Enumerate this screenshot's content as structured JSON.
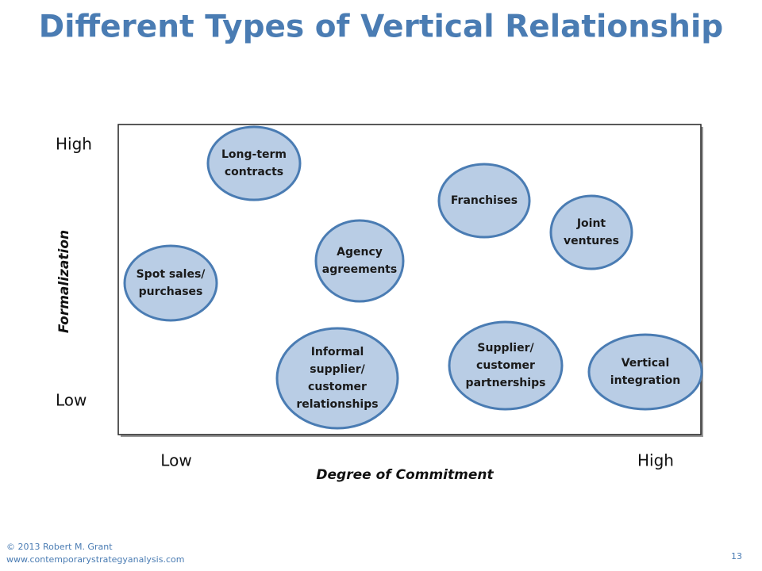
{
  "title": "Different Types of Vertical Relationship",
  "y_axis": {
    "label": "Formalization",
    "high": "High",
    "low": "Low"
  },
  "x_axis": {
    "label": "Degree of Commitment",
    "low": "Low",
    "high": "High"
  },
  "nodes": [
    {
      "lines": [
        "Long-term",
        "contracts"
      ]
    },
    {
      "lines": [
        "Franchises"
      ]
    },
    {
      "lines": [
        "Joint",
        "ventures"
      ]
    },
    {
      "lines": [
        "Agency",
        "agreements"
      ]
    },
    {
      "lines": [
        "Spot sales/",
        "purchases"
      ]
    },
    {
      "lines": [
        "Informal",
        "supplier/",
        "customer",
        "relationships"
      ]
    },
    {
      "lines": [
        "Supplier/",
        "customer",
        "partnerships"
      ]
    },
    {
      "lines": [
        "Vertical",
        "integration"
      ]
    }
  ],
  "footer": {
    "copyright": "© 2013 Robert M. Grant",
    "url": "www.contemporarystrategyanalysis.com",
    "page": "13"
  }
}
